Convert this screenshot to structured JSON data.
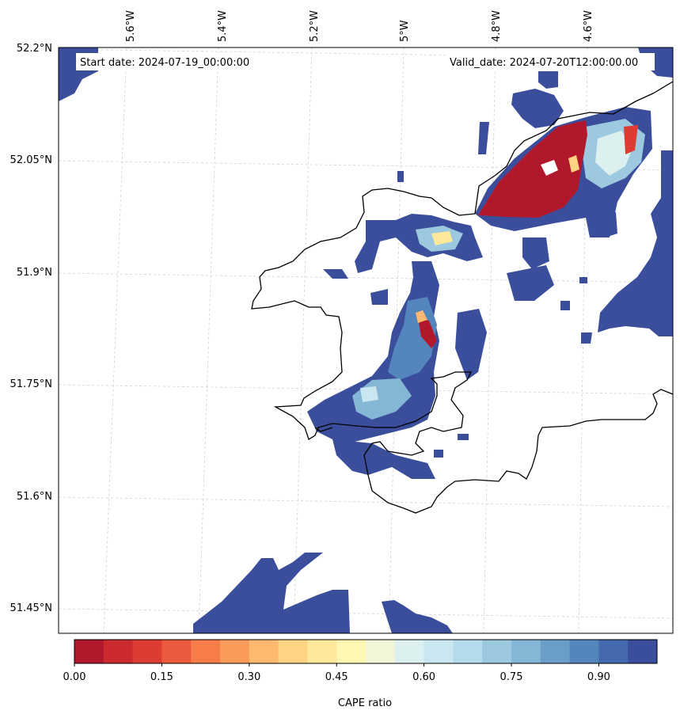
{
  "map": {
    "start_date": "Start date: 2024-07-19_00:00:00",
    "valid_date": "Valid_date: 2024-07-20T12:00:00.00",
    "lon_labels": [
      "5.6°W",
      "5.4°W",
      "5.2°W",
      "5°W",
      "4.8°W",
      "4.6°W"
    ],
    "lat_labels": [
      "52.2°N",
      "52.05°N",
      "51.9°N",
      "51.75°N",
      "51.6°N",
      "51.45°N"
    ],
    "gridlines": "dashed-light-gray",
    "coastline_color": "#000000"
  },
  "colorbar": {
    "label": "CAPE ratio",
    "min": 0.0,
    "max": 1.0,
    "tick_labels": [
      "0.00",
      "0.15",
      "0.30",
      "0.45",
      "0.60",
      "0.75",
      "0.90"
    ],
    "colors": [
      "#b2182b",
      "#cb2a2e",
      "#dc3c31",
      "#eb5a3d",
      "#f67d4a",
      "#fb9b5b",
      "#fdb96f",
      "#fed383",
      "#fee99b",
      "#fdf7b2",
      "#f0f8d9",
      "#dcf0ef",
      "#c9e6f1",
      "#b3dbec",
      "#9cc9e0",
      "#84b6d5",
      "#6a9ec9",
      "#5585bd",
      "#4569ad",
      "#3a4e9c"
    ]
  }
}
